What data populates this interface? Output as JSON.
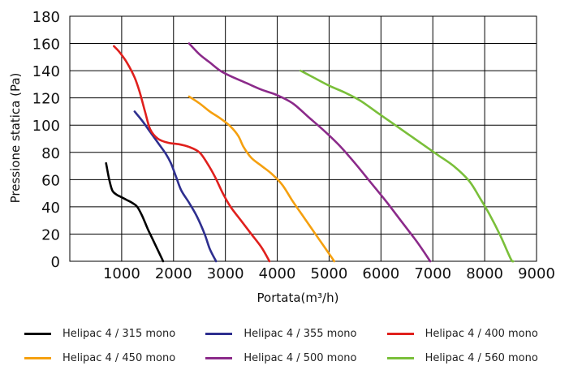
{
  "chart_data": {
    "type": "line",
    "title": "",
    "xlabel": "Portata(m³/h)",
    "ylabel": "Pressione statica (Pa)",
    "xlim": [
      0,
      9000
    ],
    "ylim": [
      0,
      180
    ],
    "xticks": [
      "1000",
      "2000",
      "3000",
      "4000",
      "5000",
      "6000",
      "7000",
      "8000",
      "9000"
    ],
    "yticks": [
      "0",
      "20",
      "40",
      "60",
      "80",
      "100",
      "120",
      "140",
      "160",
      "180"
    ],
    "grid": true,
    "legend_position": "bottom",
    "series": [
      {
        "name": "Helipac 4 / 315 mono",
        "color": "#000000",
        "points": [
          [
            700,
            72
          ],
          [
            760,
            60
          ],
          [
            820,
            52
          ],
          [
            900,
            49
          ],
          [
            1000,
            47
          ],
          [
            1100,
            45
          ],
          [
            1200,
            43
          ],
          [
            1300,
            40
          ],
          [
            1400,
            33
          ],
          [
            1500,
            24
          ],
          [
            1600,
            16
          ],
          [
            1700,
            8
          ],
          [
            1800,
            0
          ]
        ]
      },
      {
        "name": "Helipac 4 / 355 mono",
        "color": "#2e2f8f",
        "points": [
          [
            1250,
            110
          ],
          [
            1400,
            103
          ],
          [
            1550,
            95
          ],
          [
            1700,
            87
          ],
          [
            1850,
            79
          ],
          [
            1950,
            72
          ],
          [
            2050,
            62
          ],
          [
            2150,
            52
          ],
          [
            2300,
            43
          ],
          [
            2450,
            33
          ],
          [
            2600,
            20
          ],
          [
            2700,
            9
          ],
          [
            2820,
            0
          ]
        ]
      },
      {
        "name": "Helipac 4 / 400 mono",
        "color": "#e0201d",
        "points": [
          [
            850,
            158
          ],
          [
            950,
            154
          ],
          [
            1100,
            146
          ],
          [
            1250,
            135
          ],
          [
            1350,
            124
          ],
          [
            1450,
            110
          ],
          [
            1550,
            97
          ],
          [
            1700,
            90
          ],
          [
            1900,
            87
          ],
          [
            2100,
            86
          ],
          [
            2300,
            84
          ],
          [
            2500,
            80
          ],
          [
            2650,
            72
          ],
          [
            2800,
            62
          ],
          [
            2950,
            50
          ],
          [
            3100,
            40
          ],
          [
            3300,
            30
          ],
          [
            3500,
            20
          ],
          [
            3700,
            10
          ],
          [
            3850,
            0
          ]
        ]
      },
      {
        "name": "Helipac 4 / 450 mono",
        "color": "#f5a00f",
        "points": [
          [
            2300,
            121
          ],
          [
            2500,
            116
          ],
          [
            2700,
            110
          ],
          [
            2900,
            105
          ],
          [
            3100,
            99
          ],
          [
            3250,
            92
          ],
          [
            3350,
            84
          ],
          [
            3500,
            76
          ],
          [
            3700,
            70
          ],
          [
            3900,
            64
          ],
          [
            4100,
            56
          ],
          [
            4300,
            44
          ],
          [
            4500,
            33
          ],
          [
            4700,
            22
          ],
          [
            4900,
            11
          ],
          [
            5100,
            0
          ]
        ]
      },
      {
        "name": "Helipac 4 / 500 mono",
        "color": "#8b2a8a",
        "points": [
          [
            2300,
            160
          ],
          [
            2500,
            152
          ],
          [
            2700,
            146
          ],
          [
            2900,
            140
          ],
          [
            3100,
            136
          ],
          [
            3400,
            131
          ],
          [
            3700,
            126
          ],
          [
            4000,
            122
          ],
          [
            4300,
            116
          ],
          [
            4600,
            106
          ],
          [
            4900,
            96
          ],
          [
            5200,
            85
          ],
          [
            5500,
            72
          ],
          [
            5800,
            58
          ],
          [
            6100,
            44
          ],
          [
            6400,
            29
          ],
          [
            6700,
            14
          ],
          [
            6950,
            0
          ]
        ]
      },
      {
        "name": "Helipac 4 / 560 mono",
        "color": "#7abf3a",
        "points": [
          [
            4450,
            140
          ],
          [
            4700,
            135
          ],
          [
            5000,
            129
          ],
          [
            5300,
            124
          ],
          [
            5600,
            118
          ],
          [
            5900,
            110
          ],
          [
            6200,
            102
          ],
          [
            6500,
            94
          ],
          [
            6800,
            86
          ],
          [
            7100,
            78
          ],
          [
            7400,
            70
          ],
          [
            7700,
            59
          ],
          [
            7900,
            47
          ],
          [
            8100,
            34
          ],
          [
            8300,
            19
          ],
          [
            8500,
            2
          ],
          [
            8550,
            0
          ]
        ]
      }
    ]
  }
}
